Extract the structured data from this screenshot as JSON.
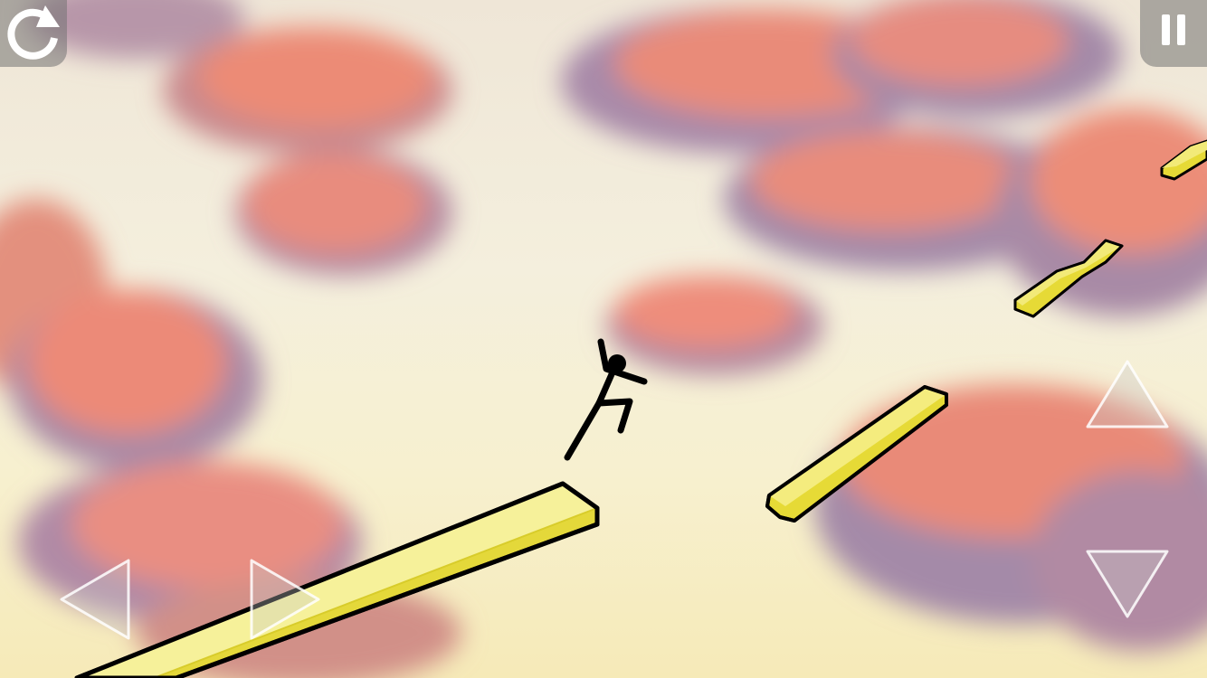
{
  "game": {
    "colors": {
      "sky_top": "#efe6d7",
      "sky_bottom": "#f6eab8",
      "cloud": "#e98a78",
      "cloud_shadow": "#a48aa8",
      "platform": "#e6dc3a",
      "platform_highlight": "#f6f08e",
      "outline": "#000000",
      "hud_button_bg": "#737373",
      "hud_icon": "#ffffff"
    },
    "hud": {
      "restart_icon": "restart-icon",
      "pause_icon": "pause-icon"
    },
    "controls": {
      "left": "left-arrow-icon",
      "right": "right-arrow-icon",
      "up": "up-arrow-icon",
      "down": "down-arrow-icon"
    }
  }
}
